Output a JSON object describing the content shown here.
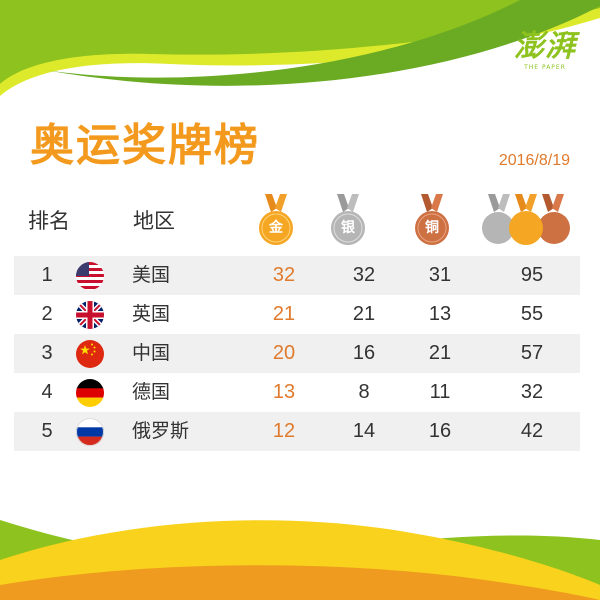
{
  "logo": {
    "cn": "澎湃",
    "en": "THE PAPER"
  },
  "title": "奥运奖牌榜",
  "date": "2016/8/19",
  "headers": {
    "rank": "排名",
    "region": "地区"
  },
  "medals": {
    "gold": "金",
    "silver": "银",
    "bronze": "铜"
  },
  "colors": {
    "gold": "#f5a623",
    "silver": "#b5b5b5",
    "bronze": "#cd7042",
    "title": "#f39a1e",
    "accent_green": "#8dc21f",
    "accent_yellow": "#f8d21c"
  },
  "rows": [
    {
      "rank": "1",
      "flag": "us-flag-icon",
      "name": "美国",
      "gold": "32",
      "silver": "32",
      "bronze": "31",
      "total": "95"
    },
    {
      "rank": "2",
      "flag": "uk-flag-icon",
      "name": "英国",
      "gold": "21",
      "silver": "21",
      "bronze": "13",
      "total": "55"
    },
    {
      "rank": "3",
      "flag": "china-flag-icon",
      "name": "中国",
      "gold": "20",
      "silver": "16",
      "bronze": "21",
      "total": "57"
    },
    {
      "rank": "4",
      "flag": "germany-flag-icon",
      "name": "德国",
      "gold": "13",
      "silver": "8",
      "bronze": "11",
      "total": "32"
    },
    {
      "rank": "5",
      "flag": "russia-flag-icon",
      "name": "俄罗斯",
      "gold": "12",
      "silver": "14",
      "bronze": "16",
      "total": "42"
    }
  ]
}
